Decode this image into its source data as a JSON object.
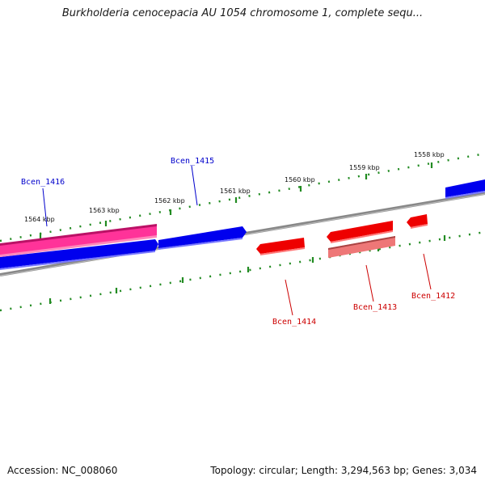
{
  "title": "Burkholderia cenocepacia AU 1054 chromosome 1, complete sequ...",
  "footer": {
    "accession": "Accession: NC_008060",
    "summary": "Topology: circular; Length: 3,294,563 bp; Genes: 3,034"
  },
  "ruler": {
    "labels": [
      "1558 kbp",
      "1559 kbp",
      "1560 kbp",
      "1561 kbp",
      "1562 kbp",
      "1563 kbp",
      "1564 kbp"
    ]
  },
  "genes": [
    {
      "name": "Bcen_1416",
      "color": "#0000cc"
    },
    {
      "name": "Bcen_1415",
      "color": "#0000cc"
    },
    {
      "name": "Bcen_1414",
      "color": "#cc0000"
    },
    {
      "name": "Bcen_1413",
      "color": "#cc0000"
    },
    {
      "name": "Bcen_1412",
      "color": "#cc0000"
    }
  ],
  "colors": {
    "forward": "#0000ee",
    "reverse": "#ee0000",
    "pink": "#ff3399",
    "reverse_light": "#ee7777",
    "ticks": "#228b22",
    "backbone": "#888888"
  }
}
